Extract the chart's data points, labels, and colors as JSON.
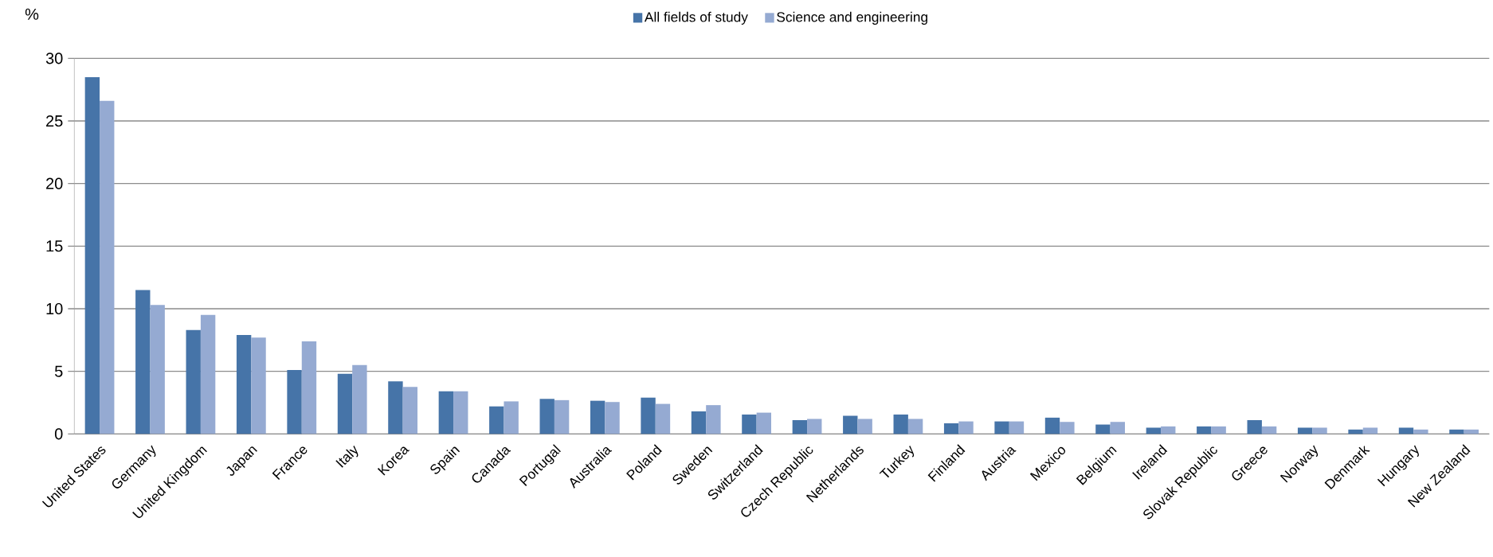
{
  "chart_data": {
    "type": "bar",
    "ylabel": "%",
    "categories": [
      "United States",
      "Germany",
      "United Kingdom",
      "Japan",
      "France",
      "Italy",
      "Korea",
      "Spain",
      "Canada",
      "Portugal",
      "Australia",
      "Poland",
      "Sweden",
      "Switzerland",
      "Czech Republic",
      "Netherlands",
      "Turkey",
      "Finland",
      "Austria",
      "Mexico",
      "Belgium",
      "Ireland",
      "Slovak Republic",
      "Greece",
      "Norway",
      "Denmark",
      "Hungary",
      "New Zealand"
    ],
    "series": [
      {
        "name": "All fields of study",
        "color": "#4674a8",
        "values": [
          28.5,
          11.5,
          8.3,
          7.9,
          5.1,
          4.8,
          4.2,
          3.4,
          2.2,
          2.8,
          2.65,
          2.9,
          1.8,
          1.55,
          1.1,
          1.45,
          1.55,
          0.85,
          1.0,
          1.3,
          0.75,
          0.5,
          0.6,
          1.1,
          0.5,
          0.35,
          0.5,
          0.35
        ]
      },
      {
        "name": "Science and engineering",
        "color": "#95aad2",
        "values": [
          26.6,
          10.3,
          9.5,
          7.7,
          7.4,
          5.5,
          3.75,
          3.4,
          2.6,
          2.7,
          2.55,
          2.4,
          2.3,
          1.7,
          1.2,
          1.2,
          1.2,
          1.0,
          1.0,
          0.96,
          0.96,
          0.6,
          0.6,
          0.6,
          0.5,
          0.5,
          0.35,
          0.35
        ]
      }
    ],
    "ylim": [
      0,
      30
    ],
    "yticks": [
      0,
      5,
      10,
      15,
      20,
      25,
      30
    ],
    "grid": "y",
    "legend": "top"
  }
}
